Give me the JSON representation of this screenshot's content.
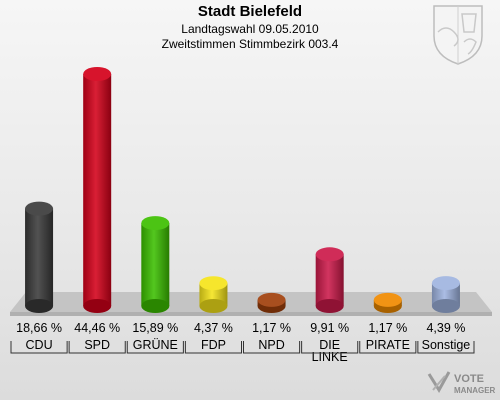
{
  "header": {
    "title": "Stadt Bielefeld",
    "subtitle1": "Landtagswahl 09.05.2010",
    "subtitle2": "Zweitstimmen Stimmbezirk 003.4"
  },
  "branding": {
    "watermark_line1": "VOTE",
    "watermark_line2": "MANAGER"
  },
  "chart_data": {
    "type": "bar",
    "title": "Stadt Bielefeld",
    "categories": [
      "CDU",
      "SPD",
      "GRÜNE",
      "FDP",
      "NPD",
      "DIE LINKE",
      "PIRATE",
      "Sonstige"
    ],
    "values": [
      18.66,
      44.46,
      15.89,
      4.37,
      1.17,
      9.91,
      1.17,
      4.39
    ],
    "value_labels": [
      "18,66 %",
      "44,46 %",
      "15,89 %",
      "4,37 %",
      "1,17 %",
      "9,91 %",
      "1,17 %",
      "4,39 %"
    ],
    "colors": [
      "#3a3a3a",
      "#d4001a",
      "#3cbf00",
      "#f5e41a",
      "#a0400c",
      "#cc1a4a",
      "#f08a00",
      "#9fb4e0"
    ],
    "ylim": [
      0,
      44.46
    ],
    "grid": false,
    "legend": "none"
  }
}
